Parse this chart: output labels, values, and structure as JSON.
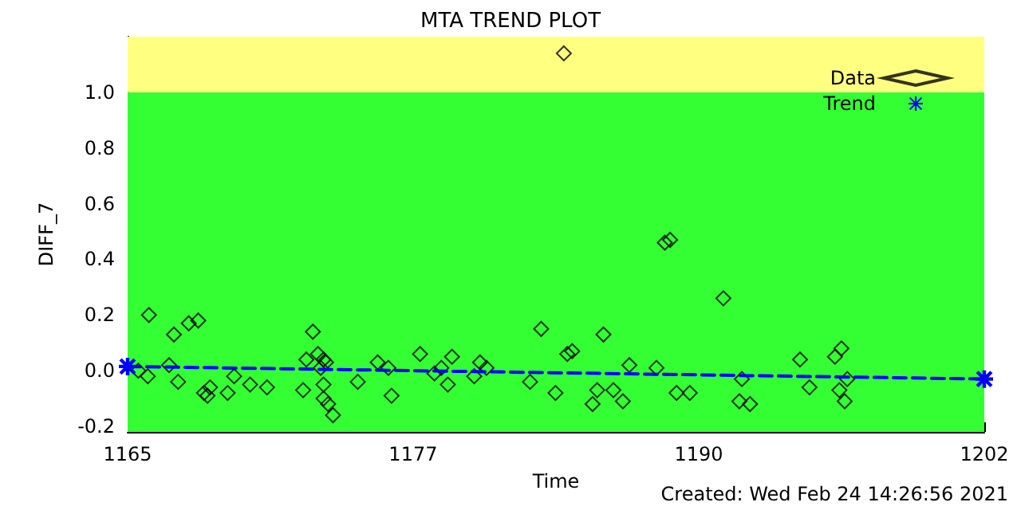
{
  "chart_data": {
    "type": "scatter",
    "title": "MTA TREND PLOT",
    "xlabel": "Time",
    "ylabel": "DIFF_7",
    "annotations": [
      "Created: Wed Feb 24 14:26:56 2021"
    ],
    "xlim": [
      1165,
      1202
    ],
    "xticks": [
      1165,
      {
        "value": 1177.33,
        "label": "1177"
      },
      {
        "value": 1189.67,
        "label": "1190"
      },
      1202
    ],
    "ylim": [
      -0.22,
      1.2
    ],
    "yticks": [
      {
        "value": -0.2,
        "label": "-0.2"
      },
      {
        "value": 0,
        "label": "0.0"
      },
      {
        "value": 0.2,
        "label": "0.2"
      },
      {
        "value": 0.4,
        "label": "0.4"
      },
      {
        "value": 0.6,
        "label": "0.6"
      },
      {
        "value": 0.8,
        "label": "0.8"
      },
      {
        "value": 1.0,
        "label": "1.0"
      }
    ],
    "grid": false,
    "legend": "top right",
    "bands": [
      {
        "axis": "y",
        "from": -0.22,
        "to": 1.0,
        "color": "#33ff33"
      },
      {
        "axis": "y",
        "from": 1.0,
        "to": 1.2,
        "color": "#ffff80"
      }
    ],
    "series": [
      {
        "name": "Data",
        "marker": "diamond",
        "color": "#000000",
        "x": [
          1165.46,
          1165.92,
          1165.87,
          1166.79,
          1167.0,
          1167.18,
          1167.64,
          1168.05,
          1168.3,
          1168.45,
          1168.56,
          1169.32,
          1169.6,
          1170.29,
          1171.02,
          1172.58,
          1172.72,
          1173.0,
          1173.22,
          1173.46,
          1173.34,
          1173.57,
          1173.46,
          1173.46,
          1173.66,
          1173.87,
          1174.94,
          1175.8,
          1176.26,
          1176.4,
          1177.63,
          1178.25,
          1178.55,
          1178.83,
          1179.01,
          1179.97,
          1180.22,
          1180.5,
          1182.38,
          1182.86,
          1183.48,
          1183.84,
          1183.99,
          1184.2,
          1185.55,
          1185.28,
          1185.08,
          1185.98,
          1186.39,
          1186.67,
          1187.84,
          1188.2,
          1188.43,
          1188.71,
          1189.28,
          1190.73,
          1191.53,
          1191.42,
          1191.88,
          1194.04,
          1194.45,
          1195.55,
          1195.83,
          1195.74,
          1195.97,
          1196.08
        ],
        "values": [
          0.0,
          0.2,
          -0.02,
          0.02,
          0.13,
          -0.04,
          0.17,
          0.18,
          -0.08,
          -0.09,
          -0.06,
          -0.08,
          -0.02,
          -0.05,
          -0.06,
          -0.07,
          0.04,
          0.14,
          0.06,
          0.04,
          0.01,
          0.03,
          -0.05,
          -0.1,
          -0.12,
          -0.16,
          -0.04,
          0.03,
          0.01,
          -0.09,
          0.06,
          -0.01,
          0.01,
          -0.05,
          0.05,
          -0.02,
          0.03,
          0.01,
          -0.04,
          0.15,
          -0.08,
          1.14,
          0.06,
          0.07,
          0.13,
          -0.07,
          -0.12,
          -0.07,
          -0.11,
          0.02,
          0.01,
          0.46,
          0.47,
          -0.08,
          -0.08,
          0.26,
          -0.03,
          -0.11,
          -0.12,
          0.04,
          -0.06,
          0.05,
          0.08,
          -0.07,
          -0.11,
          -0.03
        ]
      },
      {
        "name": "Trend",
        "type": "line",
        "marker": "star",
        "line_style": "dashed",
        "color": "#0000ff",
        "x": [
          1165,
          1202
        ],
        "values": [
          0.015,
          -0.03
        ]
      }
    ]
  }
}
